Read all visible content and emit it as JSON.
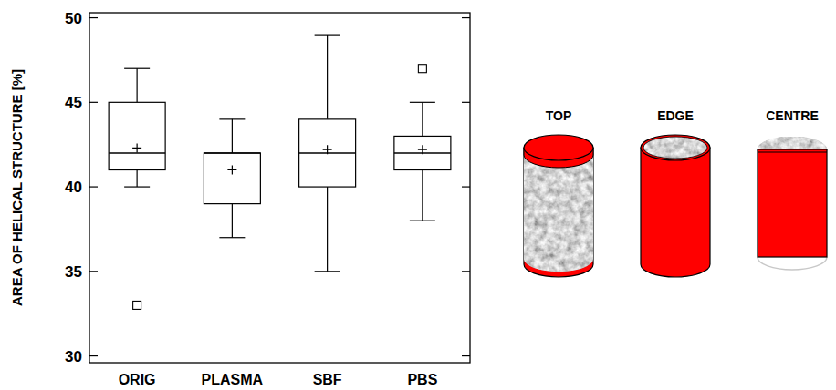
{
  "chart_data": {
    "type": "box",
    "y_label": "AREA OF HELICAL STRUCTURE [%]",
    "categories": [
      "ORIG",
      "PLASMA",
      "SBF",
      "PBS"
    ],
    "whisker_low": [
      40,
      37,
      35,
      38
    ],
    "q1": [
      41,
      39,
      40,
      41
    ],
    "median": [
      42,
      42,
      42,
      42
    ],
    "q3": [
      45,
      42,
      44,
      43
    ],
    "whisker_high": [
      47,
      44,
      49,
      45
    ],
    "mean": [
      42.3,
      41,
      42.2,
      42.2
    ],
    "outliers": [
      [
        33
      ],
      [],
      [],
      [
        47
      ]
    ],
    "color": "#000000",
    "ylim": [
      29.6,
      50.3
    ],
    "yticks": [
      30,
      35,
      40,
      45,
      50
    ],
    "grid": false
  },
  "diagram": {
    "labels": [
      "TOP",
      "EDGE",
      "CENTRE"
    ],
    "color": "#ff0000"
  }
}
